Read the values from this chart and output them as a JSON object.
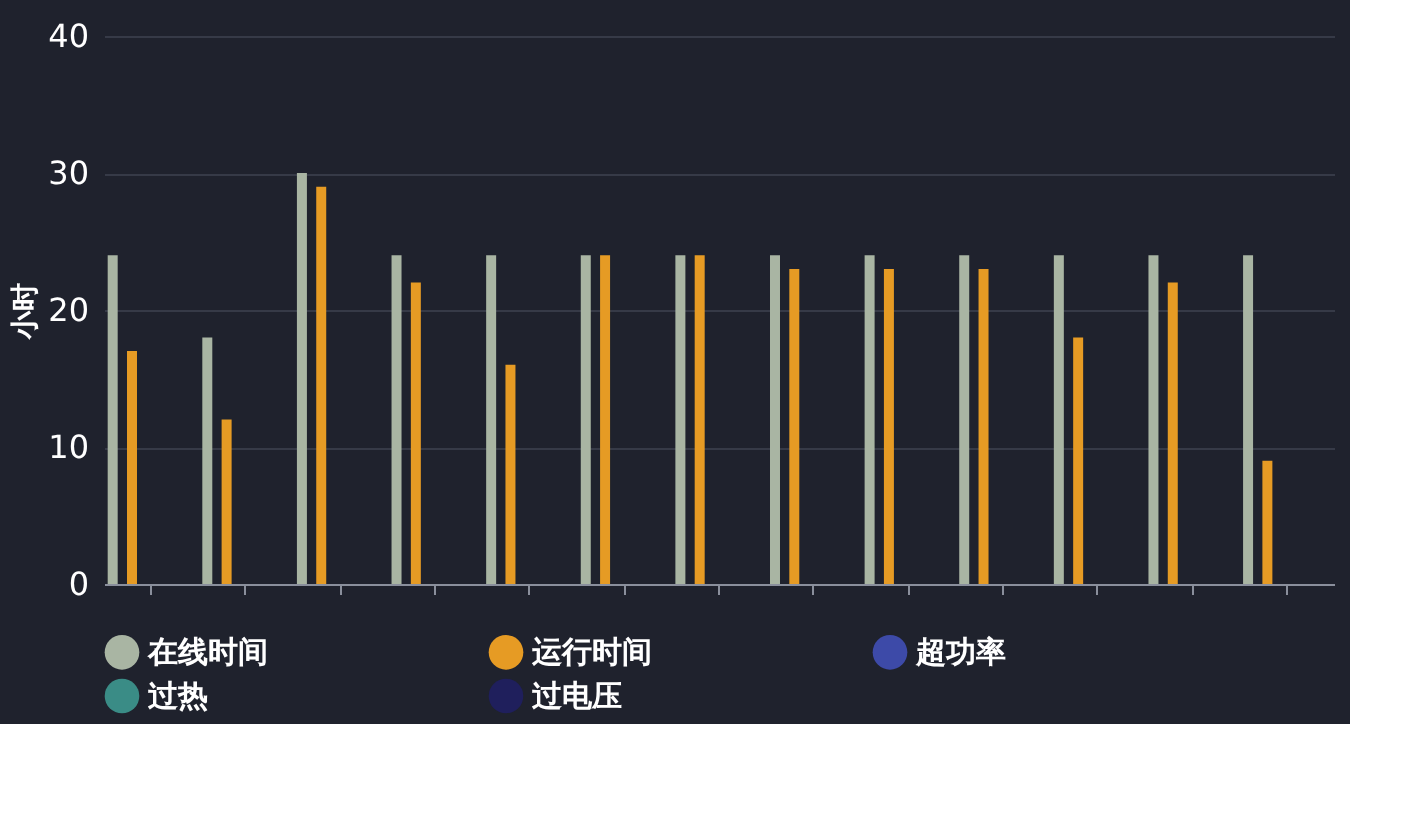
{
  "chart_data": {
    "type": "bar",
    "ylabel": "小时",
    "categories": [
      null,
      null,
      null,
      null,
      null,
      null,
      null,
      null,
      null,
      null,
      null,
      null,
      null
    ],
    "series": [
      {
        "name": "在线时间",
        "color": "#a9b5a3",
        "values": [
          24,
          18,
          30,
          24,
          24,
          24,
          24,
          24,
          24,
          24,
          24,
          24,
          24
        ]
      },
      {
        "name": "运行时间",
        "color": "#e69b24",
        "values": [
          17,
          12,
          29,
          22,
          16,
          24,
          24,
          23,
          23,
          23,
          18,
          22,
          9
        ]
      },
      {
        "name": "超功率",
        "color": "#3d4aa8",
        "values": [
          0,
          0,
          0,
          0,
          0,
          0,
          0,
          0,
          0,
          0,
          0,
          0,
          0
        ]
      },
      {
        "name": "过热",
        "color": "#3a8c86",
        "values": [
          0,
          0,
          0,
          0,
          0,
          0,
          0,
          0,
          0,
          0,
          0,
          0,
          0
        ]
      },
      {
        "name": "过电压",
        "color": "#1f1f5c",
        "values": [
          0,
          0,
          0,
          0,
          0,
          0,
          0,
          0,
          0,
          0,
          0,
          0,
          0
        ]
      }
    ],
    "ylim": [
      0,
      40
    ],
    "yticks": [
      0,
      10,
      20,
      30,
      40
    ],
    "grid": "y",
    "legend": "bottom"
  }
}
